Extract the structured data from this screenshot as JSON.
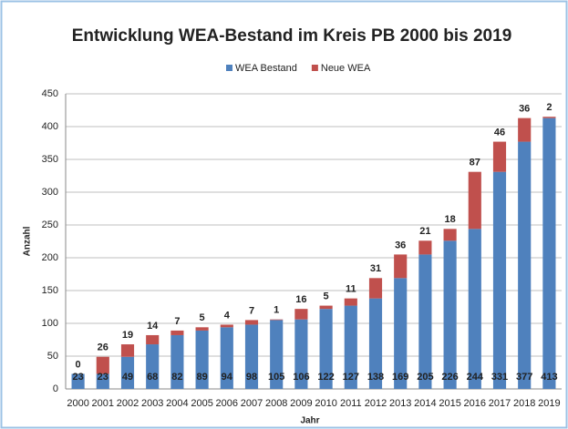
{
  "chart_data": {
    "type": "stacked_bar",
    "title": "Entwicklung WEA-Bestand im Kreis PB 2000 bis 2019",
    "x_label": "Jahr",
    "y_label": "Anzahl",
    "categories": [
      "2000",
      "2001",
      "2002",
      "2003",
      "2004",
      "2005",
      "2006",
      "2007",
      "2008",
      "2009",
      "2010",
      "2011",
      "2012",
      "2013",
      "2014",
      "2015",
      "2016",
      "2017",
      "2018",
      "2019"
    ],
    "series": [
      {
        "name": "WEA Bestand",
        "color": "#4f81bd",
        "values": [
          23,
          23,
          49,
          68,
          82,
          89,
          94,
          98,
          105,
          106,
          122,
          127,
          138,
          169,
          205,
          226,
          244,
          331,
          377,
          413
        ]
      },
      {
        "name": "Neue WEA",
        "color": "#c0504d",
        "values": [
          0,
          26,
          19,
          14,
          7,
          5,
          4,
          7,
          1,
          16,
          5,
          11,
          31,
          36,
          21,
          18,
          87,
          46,
          36,
          2
        ]
      }
    ],
    "ylim": [
      0,
      450
    ],
    "yticks": [
      0,
      50,
      100,
      150,
      200,
      250,
      300,
      350,
      400,
      450
    ],
    "grid": true,
    "legend": "top"
  }
}
